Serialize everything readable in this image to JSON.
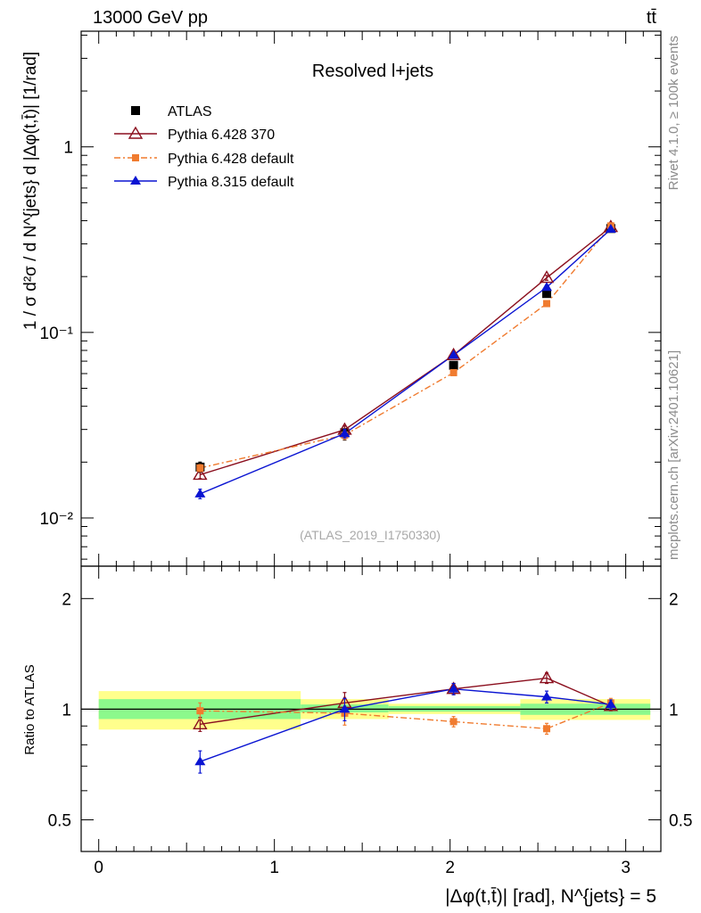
{
  "header": {
    "energy": "13000 GeV pp",
    "process": "tt̄"
  },
  "side_labels": {
    "rivet": "Rivet 4.1.0, ≥ 100k events",
    "mcplots": "mcplots.cern.ch [arXiv:2401.10621]"
  },
  "chart_data": [
    {
      "type": "line",
      "title": "Resolved l+jets",
      "watermark": "(ATLAS_2019_I1750330)",
      "ylabel": "1 / σ d²σ / d N^{jets} d |Δφ(t,t̄)| [1/rad]",
      "yscale": "log",
      "xlim": [
        -0.1,
        3.2
      ],
      "ylim": [
        0.0055,
        4.2
      ],
      "ytick_labels": [
        "10⁻²",
        "10⁻¹",
        "1"
      ],
      "x": [
        0.577,
        1.4,
        2.02,
        2.55,
        2.915
      ],
      "series": [
        {
          "name": "ATLAS",
          "values": [
            0.0188,
            0.0288,
            0.0665,
            0.162,
            0.363
          ],
          "errors": [
            0.0012,
            0.0025,
            0.003,
            0.006,
            0.01
          ],
          "color": "#000000",
          "marker": "square",
          "line": "none"
        },
        {
          "name": "Pythia 6.428 370",
          "values": [
            0.0171,
            0.0299,
            0.0755,
            0.197,
            0.37
          ],
          "errors": [
            0.0008,
            0.0015,
            0.002,
            0.006,
            0.008
          ],
          "color": "#8b0f1e",
          "marker": "open-triangle",
          "line": "solid"
        },
        {
          "name": "Pythia 6.428 default",
          "values": [
            0.0186,
            0.028,
            0.0607,
            0.143,
            0.375
          ],
          "errors": [
            0.0008,
            0.0015,
            0.002,
            0.005,
            0.008
          ],
          "color": "#f07b2f",
          "marker": "small-square",
          "line": "dashdot"
        },
        {
          "name": "Pythia 8.315 default",
          "values": [
            0.0135,
            0.0285,
            0.0755,
            0.175,
            0.36
          ],
          "errors": [
            0.0008,
            0.0015,
            0.002,
            0.005,
            0.008
          ],
          "color": "#0a14d2",
          "marker": "triangle",
          "line": "solid"
        }
      ]
    },
    {
      "type": "line",
      "ylabel": "Ratio to ATLAS",
      "xlabel": "|Δφ(t,t̄)| [rad], N^{jets} = 5",
      "xlim": [
        -0.1,
        3.2
      ],
      "ylim": [
        0.41,
        2.45
      ],
      "ytick_labels": [
        "0.5",
        "1",
        "2"
      ],
      "xtick_labels": [
        "0",
        "1",
        "2",
        "3"
      ],
      "uncertainty_bands": [
        {
          "x0": 0.0,
          "x1": 1.15,
          "inner": [
            0.94,
            1.065
          ],
          "outer": [
            0.88,
            1.12
          ]
        },
        {
          "x0": 1.15,
          "x1": 1.65,
          "inner": [
            0.98,
            1.03
          ],
          "outer": [
            0.94,
            1.065
          ]
        },
        {
          "x0": 1.65,
          "x1": 2.4,
          "inner": [
            0.985,
            1.02
          ],
          "outer": [
            0.97,
            1.035
          ]
        },
        {
          "x0": 2.4,
          "x1": 3.14,
          "inner": [
            0.965,
            1.035
          ],
          "outer": [
            0.935,
            1.065
          ]
        }
      ],
      "x": [
        0.577,
        1.4,
        2.02,
        2.55,
        2.915
      ],
      "series": [
        {
          "name": "Pythia 6.428 370",
          "values": [
            0.91,
            1.04,
            1.135,
            1.215,
            1.02
          ],
          "errors": [
            0.04,
            0.07,
            0.04,
            0.04,
            0.03
          ],
          "color": "#8b0f1e"
        },
        {
          "name": "Pythia 6.428 default",
          "values": [
            0.99,
            0.975,
            0.925,
            0.885,
            1.04
          ],
          "errors": [
            0.05,
            0.07,
            0.03,
            0.03,
            0.03
          ],
          "color": "#f07b2f"
        },
        {
          "name": "Pythia 8.315 default",
          "values": [
            0.72,
            1.0,
            1.135,
            1.08,
            1.03
          ],
          "errors": [
            0.05,
            0.07,
            0.04,
            0.04,
            0.03
          ],
          "color": "#0a14d2"
        }
      ]
    }
  ]
}
